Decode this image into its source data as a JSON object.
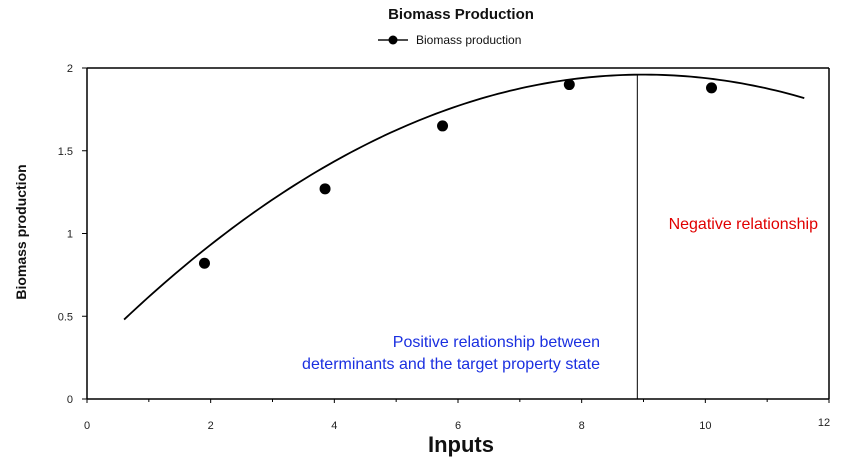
{
  "chart_data": {
    "type": "line",
    "title": "Biomass Production",
    "xlabel": "Inputs",
    "ylabel": "Biomass production",
    "xlim": [
      0,
      12
    ],
    "ylim": [
      0,
      2
    ],
    "x_ticks": [
      "0",
      "2",
      "4",
      "6",
      "8",
      "10",
      "12"
    ],
    "y_ticks": [
      "0",
      "0.5",
      "1",
      "1.5",
      "2"
    ],
    "legend": {
      "position": "top-center",
      "entries": [
        "Biomass production"
      ]
    },
    "grid": false,
    "series": [
      {
        "name": "Biomass production",
        "points": [
          {
            "x": 1.9,
            "y": 0.82
          },
          {
            "x": 3.85,
            "y": 1.27
          },
          {
            "x": 5.75,
            "y": 1.65
          },
          {
            "x": 7.8,
            "y": 1.9
          },
          {
            "x": 10.1,
            "y": 1.88
          }
        ],
        "curve": {
          "x_start": 0.6,
          "x_end": 11.6,
          "peak_x": 9.0,
          "peak_y": 1.96,
          "y_at_start": 0.48
        }
      }
    ],
    "divider_x": 8.9,
    "annotations": [
      {
        "id": "negative",
        "text": "Negative relationship",
        "color": "#e00000"
      },
      {
        "id": "positive",
        "lines": [
          "Positive relationship between",
          "determinants and the target property state"
        ],
        "color": "#1a2fe0"
      }
    ]
  }
}
